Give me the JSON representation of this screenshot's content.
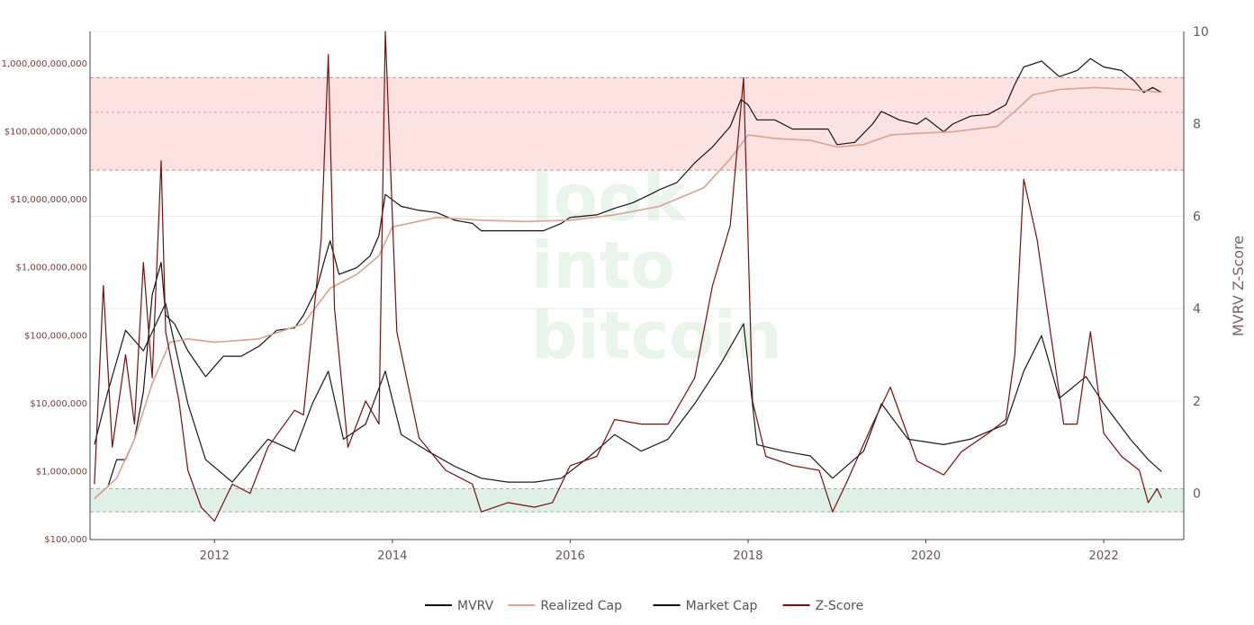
{
  "chart_data": {
    "type": "line",
    "watermark": [
      "look",
      "into",
      "bitcoin"
    ],
    "y_left": {
      "scale": "log",
      "range": [
        100000,
        3000000000000
      ],
      "tick_values": [
        100000,
        1000000,
        10000000,
        100000000,
        1000000000,
        10000000000,
        100000000000,
        1000000000000
      ],
      "tick_labels": [
        "$100,000",
        "$1,000,000",
        "$10,000,000",
        "$100,000,000",
        "$1,000,000,000",
        "$10,000,000,000",
        "$100,000,000,000",
        "1,000,000,000,000"
      ]
    },
    "y_right": {
      "title": "MVRV Z-Score",
      "range": [
        -1,
        10
      ],
      "tick_values": [
        0,
        2,
        4,
        6,
        8,
        10
      ],
      "tick_labels": [
        "0",
        "2",
        "4",
        "6",
        "8",
        "10"
      ]
    },
    "x_axis": {
      "range": [
        2010.6,
        2022.9
      ],
      "tick_values": [
        2012,
        2014,
        2016,
        2018,
        2020,
        2022
      ],
      "tick_labels": [
        "2012",
        "2014",
        "2016",
        "2018",
        "2020",
        "2022"
      ]
    },
    "bands": [
      {
        "name": "top",
        "from": 7,
        "to": 9,
        "color": "#fde2e2",
        "border": "#c98c8c",
        "mid": 8.25
      },
      {
        "name": "bottom",
        "from": -0.4,
        "to": 0.1,
        "color": "#dff1e6",
        "border": "#9ab5a3",
        "mid": 0
      }
    ],
    "legend": [
      {
        "label": "MVRV",
        "color": "#111111"
      },
      {
        "label": "Realized Cap",
        "color": "#d9a293"
      },
      {
        "label": "Market Cap",
        "color": "#111111"
      },
      {
        "label": "Z-Score",
        "color": "#7a0e0e"
      }
    ],
    "series": [
      {
        "name": "Market Cap",
        "axis": "left",
        "color": "#141414",
        "x": [
          2010.65,
          2010.8,
          2010.9,
          2011.0,
          2011.1,
          2011.2,
          2011.3,
          2011.4,
          2011.45,
          2011.55,
          2011.7,
          2011.9,
          2012.1,
          2012.3,
          2012.5,
          2012.7,
          2012.9,
          2013.0,
          2013.15,
          2013.25,
          2013.3,
          2013.4,
          2013.6,
          2013.75,
          2013.85,
          2013.92,
          2014.0,
          2014.1,
          2014.3,
          2014.5,
          2014.7,
          2014.9,
          2015.0,
          2015.2,
          2015.5,
          2015.7,
          2015.9,
          2016.0,
          2016.3,
          2016.5,
          2016.7,
          2016.9,
          2017.0,
          2017.2,
          2017.4,
          2017.6,
          2017.8,
          2017.92,
          2018.0,
          2018.1,
          2018.3,
          2018.5,
          2018.7,
          2018.9,
          2019.0,
          2019.2,
          2019.4,
          2019.5,
          2019.7,
          2019.9,
          2020.0,
          2020.2,
          2020.3,
          2020.5,
          2020.7,
          2020.9,
          2021.0,
          2021.1,
          2021.3,
          2021.5,
          2021.7,
          2021.85,
          2022.0,
          2022.2,
          2022.35,
          2022.45,
          2022.55,
          2022.65
        ],
        "y": [
          400000,
          600000,
          1500000,
          1500000,
          3000000,
          15000000,
          400000000,
          1200000000,
          200000000,
          150000000,
          60000000,
          25000000,
          50000000,
          50000000,
          70000000,
          120000000,
          130000000,
          200000000,
          500000000,
          1500000000,
          2500000000,
          800000000,
          1000000000,
          1500000000,
          3000000000,
          12000000000,
          10000000000,
          8000000000,
          7000000000,
          6500000000,
          5000000000,
          4500000000,
          3500000000,
          3500000000,
          3500000000,
          3500000000,
          4500000000,
          5500000000,
          6000000000,
          7500000000,
          9000000000,
          12000000000,
          14000000000,
          18000000000,
          35000000000,
          60000000000,
          120000000000,
          300000000000,
          250000000000,
          150000000000,
          150000000000,
          110000000000,
          110000000000,
          110000000000,
          65000000000,
          70000000000,
          130000000000,
          200000000000,
          150000000000,
          130000000000,
          160000000000,
          100000000000,
          130000000000,
          170000000000,
          180000000000,
          250000000000,
          500000000000,
          900000000000,
          1100000000000,
          650000000000,
          800000000000,
          1200000000000,
          900000000000,
          800000000000,
          550000000000,
          380000000000,
          450000000000,
          380000000000
        ]
      },
      {
        "name": "Realized Cap",
        "axis": "left",
        "color": "#d9a293",
        "x": [
          2010.65,
          2010.9,
          2011.1,
          2011.3,
          2011.5,
          2011.7,
          2012.0,
          2012.5,
          2013.0,
          2013.3,
          2013.6,
          2013.85,
          2014.0,
          2014.5,
          2015.0,
          2015.5,
          2016.0,
          2016.5,
          2017.0,
          2017.5,
          2017.8,
          2018.0,
          2018.3,
          2018.7,
          2019.0,
          2019.3,
          2019.6,
          2019.9,
          2020.3,
          2020.8,
          2021.0,
          2021.2,
          2021.5,
          2021.9,
          2022.3,
          2022.65
        ],
        "y": [
          400000,
          800000,
          3000000,
          20000000,
          80000000,
          90000000,
          80000000,
          90000000,
          150000000,
          500000000,
          800000000,
          1500000000,
          4000000000,
          5500000000,
          5000000000,
          4800000000,
          5000000000,
          6000000000,
          8000000000,
          15000000000,
          40000000000,
          90000000000,
          80000000000,
          75000000000,
          60000000000,
          65000000000,
          90000000000,
          95000000000,
          100000000000,
          120000000000,
          200000000000,
          350000000000,
          420000000000,
          450000000000,
          420000000000,
          380000000000
        ]
      },
      {
        "name": "MVRV",
        "axis": "left",
        "color": "#1a1a1a",
        "x": [
          2010.65,
          2010.8,
          2011.0,
          2011.2,
          2011.45,
          2011.7,
          2011.9,
          2012.2,
          2012.6,
          2012.9,
          2013.1,
          2013.28,
          2013.45,
          2013.7,
          2013.92,
          2014.1,
          2014.4,
          2014.7,
          2015.0,
          2015.3,
          2015.6,
          2015.9,
          2016.2,
          2016.5,
          2016.8,
          2017.1,
          2017.4,
          2017.7,
          2017.95,
          2018.1,
          2018.4,
          2018.7,
          2018.95,
          2019.3,
          2019.5,
          2019.8,
          2020.2,
          2020.5,
          2020.9,
          2021.1,
          2021.3,
          2021.5,
          2021.8,
          2022.0,
          2022.3,
          2022.5,
          2022.65
        ],
        "y": [
          2500000,
          15000000,
          120000000,
          60000000,
          300000000,
          10000000,
          1500000,
          700000,
          3000000,
          2000000,
          10000000,
          30000000,
          3000000,
          5000000,
          30000000,
          3500000,
          2000000,
          1200000,
          800000,
          700000,
          700000,
          800000,
          1600000,
          3500000,
          2000000,
          3000000,
          10000000,
          40000000,
          150000000,
          2500000,
          2000000,
          1700000,
          800000,
          2000000,
          10000000,
          3000000,
          2500000,
          3000000,
          5000000,
          30000000,
          100000000,
          12000000,
          25000000,
          10000000,
          3000000,
          1500000,
          1000000
        ]
      },
      {
        "name": "Z-Score",
        "axis": "right",
        "color": "#7a0e0e",
        "x": [
          2010.65,
          2010.75,
          2010.85,
          2011.0,
          2011.1,
          2011.2,
          2011.3,
          2011.4,
          2011.45,
          2011.6,
          2011.7,
          2011.85,
          2012.0,
          2012.2,
          2012.4,
          2012.6,
          2012.9,
          2013.0,
          2013.2,
          2013.28,
          2013.35,
          2013.5,
          2013.7,
          2013.85,
          2013.92,
          2014.05,
          2014.3,
          2014.6,
          2014.9,
          2015.0,
          2015.3,
          2015.6,
          2015.8,
          2016.0,
          2016.3,
          2016.5,
          2016.8,
          2017.1,
          2017.4,
          2017.6,
          2017.8,
          2017.95,
          2018.05,
          2018.2,
          2018.5,
          2018.8,
          2018.95,
          2019.1,
          2019.4,
          2019.6,
          2019.9,
          2020.2,
          2020.4,
          2020.7,
          2020.9,
          2021.0,
          2021.1,
          2021.25,
          2021.4,
          2021.55,
          2021.7,
          2021.85,
          2022.0,
          2022.2,
          2022.4,
          2022.5,
          2022.6,
          2022.65
        ],
        "y": [
          0.2,
          4.5,
          1.0,
          3.0,
          1.5,
          5.0,
          2.5,
          7.2,
          3.5,
          2.0,
          0.5,
          -0.3,
          -0.6,
          0.2,
          0.0,
          1.0,
          1.8,
          1.7,
          5.5,
          9.5,
          4.0,
          1.0,
          2.0,
          1.5,
          10.0,
          3.5,
          1.2,
          0.5,
          0.2,
          -0.4,
          -0.2,
          -0.3,
          -0.2,
          0.6,
          0.8,
          1.6,
          1.5,
          1.5,
          2.5,
          4.5,
          5.8,
          9.0,
          2.0,
          0.8,
          0.6,
          0.5,
          -0.4,
          0.2,
          1.5,
          2.3,
          0.7,
          0.4,
          0.9,
          1.3,
          1.6,
          3.0,
          6.8,
          5.5,
          3.5,
          1.5,
          1.5,
          3.5,
          1.3,
          0.8,
          0.5,
          -0.2,
          0.1,
          -0.1
        ]
      }
    ]
  }
}
